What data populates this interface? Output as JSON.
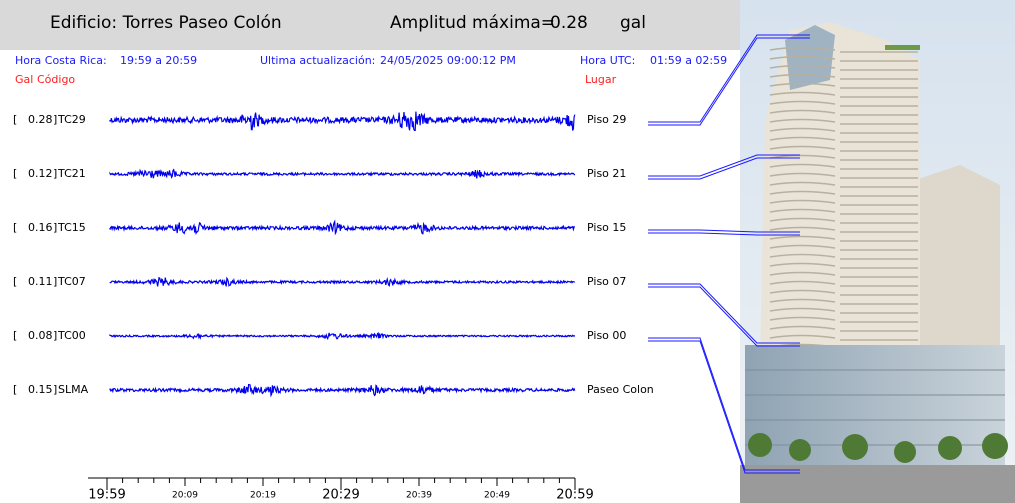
{
  "header": {
    "building": "Edificio: Torres Paseo Colón",
    "amplitude_label": "Amplitud máxima=",
    "amplitude": 0.28,
    "unit": "gal"
  },
  "info": {
    "local_label": "Hora Costa Rica:",
    "local_range": "19:59 a 20:59",
    "update_label": "Ultima actualización:",
    "update_time": "24/05/2025 09:00:12 PM",
    "utc_label": "Hora UTC:",
    "utc_range": "01:59 a 02:59"
  },
  "columns": {
    "gal": "Gal",
    "code": "Código",
    "place": "Lugar"
  },
  "brackets": [
    "[",
    "]"
  ],
  "traces": [
    {
      "amplitude": 0.28,
      "code": "TC29",
      "place": "Piso 29"
    },
    {
      "amplitude": 0.12,
      "code": "TC21",
      "place": "Piso 21"
    },
    {
      "amplitude": 0.16,
      "code": "TC15",
      "place": "Piso 15"
    },
    {
      "amplitude": 0.11,
      "code": "TC07",
      "place": "Piso 07"
    },
    {
      "amplitude": 0.08,
      "code": "TC00",
      "place": "Piso 00"
    },
    {
      "amplitude": 0.15,
      "code": "SLMA",
      "place": "Paseo Colon"
    }
  ],
  "time_axis": {
    "ticks": [
      "19:59",
      "20:09",
      "20:19",
      "20:29",
      "20:39",
      "20:49",
      "20:59"
    ]
  }
}
